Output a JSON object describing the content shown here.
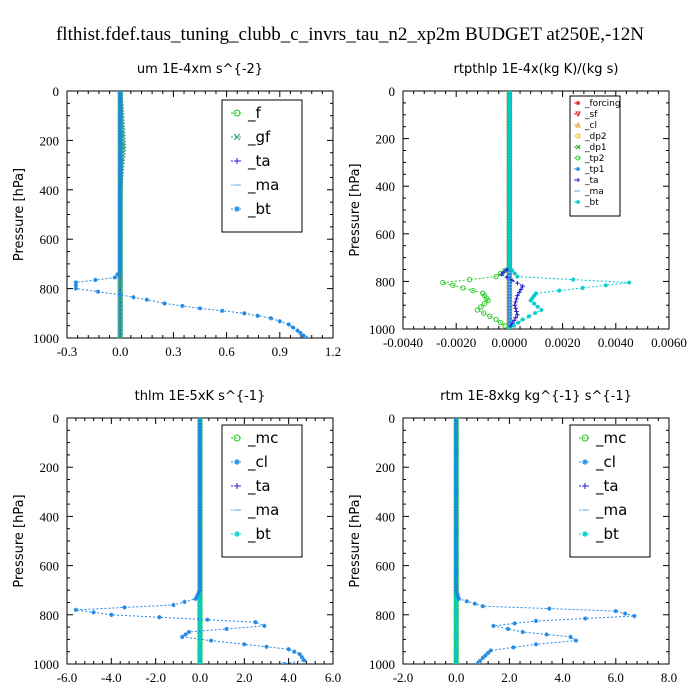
{
  "title": "flthist.fdef.taus_tuning_clubb_c_invrs_tau_n2_xp2m  BUDGET at250E,-12N",
  "chart_data": [
    {
      "type": "line",
      "title": "um   1E-4xm s^{-2}",
      "ylabel": "Pressure [hPa]",
      "xlim": [
        -0.3,
        1.2
      ],
      "ylim": [
        1000,
        0
      ],
      "xticks": [
        "-0.3",
        "0.0",
        "0.3",
        "0.6",
        "0.9",
        "1.2"
      ],
      "xtick_values": [
        -0.3,
        0.0,
        0.3,
        0.6,
        0.9,
        1.2
      ],
      "yticks": [
        "0",
        "200",
        "400",
        "600",
        "800",
        "1000"
      ],
      "ytick_values": [
        0,
        200,
        400,
        600,
        800,
        1000
      ],
      "legend_size": "large",
      "series": [
        {
          "name": "_f",
          "color": "#22cc22",
          "marker": "o",
          "x": [
            0,
            0,
            0,
            0,
            0,
            0,
            0,
            0,
            0,
            0,
            0
          ],
          "y": [
            0,
            100,
            200,
            300,
            400,
            500,
            600,
            700,
            800,
            900,
            1000
          ]
        },
        {
          "name": "_gf",
          "color": "#2a9d8f",
          "marker": "x",
          "x": [
            0,
            0.01,
            0.02,
            0.01,
            0,
            0,
            0,
            0,
            0,
            0,
            0
          ],
          "y": [
            0,
            100,
            235,
            300,
            400,
            500,
            600,
            700,
            800,
            900,
            1000
          ]
        },
        {
          "name": "_ta",
          "color": "#2222cc",
          "marker": "+",
          "x": [
            0,
            0,
            0,
            0,
            0,
            0,
            0,
            0,
            0,
            0,
            0
          ],
          "y": [
            0,
            100,
            200,
            300,
            400,
            500,
            600,
            700,
            800,
            900,
            1000
          ]
        },
        {
          "name": "_ma",
          "color": "#66aadd",
          "marker": "-",
          "x": [
            0,
            0,
            0,
            0,
            0,
            0,
            0,
            0,
            0,
            0,
            0
          ],
          "y": [
            0,
            100,
            200,
            300,
            400,
            500,
            600,
            700,
            800,
            900,
            1000
          ]
        },
        {
          "name": "_bt",
          "color": "#1e88e5",
          "marker": "*",
          "x": [
            0,
            0,
            0,
            0,
            0,
            -0.03,
            -0.25,
            -0.25,
            0.0,
            0.15,
            0.25,
            0.45,
            0.7,
            0.85,
            0.95,
            1.0,
            1.05
          ],
          "y": [
            0,
            200,
            400,
            600,
            730,
            755,
            775,
            800,
            825,
            845,
            860,
            880,
            900,
            920,
            945,
            970,
            1000
          ]
        }
      ]
    },
    {
      "type": "line",
      "title": "rtpthlp   1E-4x(kg K)/(kg s)",
      "ylabel": "Pressure [hPa]",
      "xlim": [
        -0.004,
        0.006
      ],
      "ylim": [
        1000,
        0
      ],
      "xticks": [
        "-0.0040",
        "-0.0020",
        "0.0000",
        "0.0020",
        "0.0040",
        "0.0060"
      ],
      "xtick_values": [
        -0.004,
        -0.002,
        0.0,
        0.002,
        0.004,
        0.006
      ],
      "yticks": [
        "0",
        "200",
        "400",
        "600",
        "800",
        "1000"
      ],
      "ytick_values": [
        0,
        200,
        400,
        600,
        800,
        1000
      ],
      "legend_size": "small",
      "series": [
        {
          "name": "_forcing",
          "color": "#dd2222",
          "marker": "*",
          "x": [
            0,
            0,
            0,
            0,
            0,
            0,
            0,
            0,
            0,
            0,
            0
          ],
          "y": [
            0,
            100,
            200,
            300,
            400,
            500,
            600,
            700,
            800,
            900,
            1000
          ]
        },
        {
          "name": "_sf",
          "color": "#dd2222",
          "marker": "v",
          "x": [
            0,
            0,
            0,
            0,
            0,
            0,
            0,
            0,
            0,
            0,
            0
          ],
          "y": [
            0,
            100,
            200,
            300,
            400,
            500,
            600,
            700,
            800,
            900,
            1000
          ]
        },
        {
          "name": "_cl",
          "color": "#e0a030",
          "marker": "^",
          "x": [
            0,
            0,
            0,
            0,
            0,
            0,
            0,
            0,
            0,
            0,
            0
          ],
          "y": [
            0,
            100,
            200,
            300,
            400,
            500,
            600,
            700,
            800,
            900,
            1000
          ]
        },
        {
          "name": "_dp2",
          "color": "#e0c020",
          "marker": "o",
          "x": [
            0,
            0,
            0,
            0,
            0,
            0,
            0,
            0,
            0,
            0,
            0
          ],
          "y": [
            0,
            100,
            200,
            300,
            400,
            500,
            600,
            700,
            800,
            900,
            1000
          ]
        },
        {
          "name": "_dp1",
          "color": "#22aa22",
          "marker": "x",
          "x": [
            0,
            0,
            0,
            0,
            0,
            0,
            0,
            0,
            0,
            0,
            0
          ],
          "y": [
            0,
            100,
            200,
            300,
            400,
            500,
            600,
            700,
            800,
            900,
            1000
          ]
        },
        {
          "name": "_tp2",
          "color": "#33cc33",
          "marker": "o",
          "x": [
            0,
            0,
            0,
            -0.0005,
            -0.0025,
            -0.001,
            -0.0008,
            -0.0012,
            -0.0005,
            0
          ],
          "y": [
            0,
            600,
            740,
            780,
            805,
            850,
            880,
            920,
            960,
            1000
          ]
        },
        {
          "name": "_tp1",
          "color": "#1e88e5",
          "marker": "*",
          "x": [
            0,
            0,
            0,
            0,
            0,
            0,
            0,
            0,
            0,
            0,
            0
          ],
          "y": [
            0,
            100,
            200,
            300,
            400,
            500,
            600,
            700,
            800,
            900,
            1000
          ]
        },
        {
          "name": "_ta",
          "color": "#2222cc",
          "marker": "+",
          "x": [
            0,
            0,
            0,
            -0.0003,
            0.0005,
            0.0003,
            0.0002,
            0.0003,
            0
          ],
          "y": [
            0,
            600,
            740,
            770,
            820,
            860,
            900,
            940,
            1000
          ]
        },
        {
          "name": "_ma",
          "color": "#66aadd",
          "marker": "-",
          "x": [
            0,
            0,
            0,
            0,
            0,
            0,
            0,
            0,
            0,
            0,
            0
          ],
          "y": [
            0,
            100,
            200,
            300,
            400,
            500,
            600,
            700,
            800,
            900,
            1000
          ]
        },
        {
          "name": "_bt",
          "color": "#00cccc",
          "marker": "*",
          "x": [
            0,
            0,
            0,
            0.0003,
            0.0045,
            0.001,
            0.0008,
            0.0012,
            0.0005,
            0
          ],
          "y": [
            0,
            600,
            740,
            780,
            805,
            850,
            880,
            920,
            960,
            1000
          ]
        }
      ]
    },
    {
      "type": "line",
      "title": "thlm   1E-5xK s^{-1}",
      "ylabel": "Pressure [hPa]",
      "xlim": [
        -6.0,
        6.0
      ],
      "ylim": [
        1000,
        0
      ],
      "xticks": [
        "-6.0",
        "-4.0",
        "-2.0",
        "0.0",
        "2.0",
        "4.0",
        "6.0"
      ],
      "xtick_values": [
        -6,
        -4,
        -2,
        0,
        2,
        4,
        6
      ],
      "yticks": [
        "0",
        "200",
        "400",
        "600",
        "800",
        "1000"
      ],
      "ytick_values": [
        0,
        200,
        400,
        600,
        800,
        1000
      ],
      "legend_size": "large",
      "series": [
        {
          "name": "_mc",
          "color": "#22cc22",
          "marker": "o",
          "x": [
            0,
            0,
            0,
            0,
            0,
            0,
            0,
            0,
            0,
            0,
            0
          ],
          "y": [
            0,
            100,
            200,
            300,
            400,
            500,
            600,
            700,
            800,
            900,
            1000
          ]
        },
        {
          "name": "_cl",
          "color": "#1e88e5",
          "marker": "*",
          "x": [
            0,
            0,
            0,
            -0.2,
            -1.2,
            -5.6,
            -4.0,
            2.5,
            2.9,
            -0.5,
            -0.8,
            0.5,
            2.0,
            4.0,
            4.5,
            4.7,
            3.8
          ],
          "y": [
            0,
            400,
            700,
            735,
            760,
            780,
            800,
            830,
            845,
            870,
            890,
            905,
            920,
            940,
            960,
            985,
            1000
          ]
        },
        {
          "name": "_ta",
          "color": "#2222cc",
          "marker": "+",
          "x": [
            0,
            0,
            0,
            0,
            0,
            0,
            0,
            0,
            0,
            0,
            0
          ],
          "y": [
            0,
            100,
            200,
            300,
            400,
            500,
            600,
            700,
            800,
            900,
            1000
          ]
        },
        {
          "name": "_ma",
          "color": "#66aadd",
          "marker": "-",
          "x": [
            0,
            0,
            0,
            0,
            0,
            0,
            0,
            0,
            0,
            0,
            0
          ],
          "y": [
            0,
            100,
            200,
            300,
            400,
            500,
            600,
            700,
            800,
            900,
            1000
          ]
        },
        {
          "name": "_bt",
          "color": "#00cccc",
          "marker": "*",
          "x": [
            0,
            0,
            0,
            0,
            0,
            0,
            0,
            0,
            0,
            0,
            0
          ],
          "y": [
            0,
            100,
            200,
            300,
            400,
            500,
            600,
            700,
            800,
            900,
            1000
          ]
        }
      ]
    },
    {
      "type": "line",
      "title": "rtm   1E-8xkg kg^{-1} s^{-1}",
      "ylabel": "Pressure [hPa]",
      "xlim": [
        -2.0,
        8.0
      ],
      "ylim": [
        1000,
        0
      ],
      "xticks": [
        "-2.0",
        "0.0",
        "2.0",
        "4.0",
        "6.0",
        "8.0"
      ],
      "xtick_values": [
        -2,
        0,
        2,
        4,
        6,
        8
      ],
      "yticks": [
        "0",
        "200",
        "400",
        "600",
        "800",
        "1000"
      ],
      "ytick_values": [
        0,
        200,
        400,
        600,
        800,
        1000
      ],
      "legend_size": "large",
      "series": [
        {
          "name": "_mc",
          "color": "#22cc22",
          "marker": "o",
          "x": [
            0,
            0,
            0,
            0,
            0,
            0,
            0,
            0,
            0,
            0,
            0
          ],
          "y": [
            0,
            100,
            200,
            300,
            400,
            500,
            600,
            700,
            800,
            900,
            1000
          ]
        },
        {
          "name": "_cl",
          "color": "#1e88e5",
          "marker": "*",
          "x": [
            0,
            0,
            0,
            0.1,
            1.0,
            6.0,
            6.7,
            3.0,
            1.4,
            2.5,
            4.3,
            4.5,
            3.0,
            1.3,
            1.0,
            0.8
          ],
          "y": [
            0,
            400,
            700,
            735,
            765,
            785,
            805,
            825,
            845,
            870,
            890,
            905,
            920,
            945,
            975,
            1000
          ]
        },
        {
          "name": "_ta",
          "color": "#2222cc",
          "marker": "+",
          "x": [
            0,
            0,
            0,
            0,
            0,
            0,
            0,
            0,
            0,
            0,
            0
          ],
          "y": [
            0,
            100,
            200,
            300,
            400,
            500,
            600,
            700,
            800,
            900,
            1000
          ]
        },
        {
          "name": "_ma",
          "color": "#66aadd",
          "marker": "-",
          "x": [
            0,
            0,
            0,
            0,
            0,
            0,
            0,
            0,
            0,
            0,
            0
          ],
          "y": [
            0,
            100,
            200,
            300,
            400,
            500,
            600,
            700,
            800,
            900,
            1000
          ]
        },
        {
          "name": "_bt",
          "color": "#00cccc",
          "marker": "*",
          "x": [
            0,
            0,
            0,
            0,
            0,
            0,
            0,
            0,
            0,
            0,
            0
          ],
          "y": [
            0,
            100,
            200,
            300,
            400,
            500,
            600,
            700,
            800,
            900,
            1000
          ]
        }
      ]
    }
  ]
}
